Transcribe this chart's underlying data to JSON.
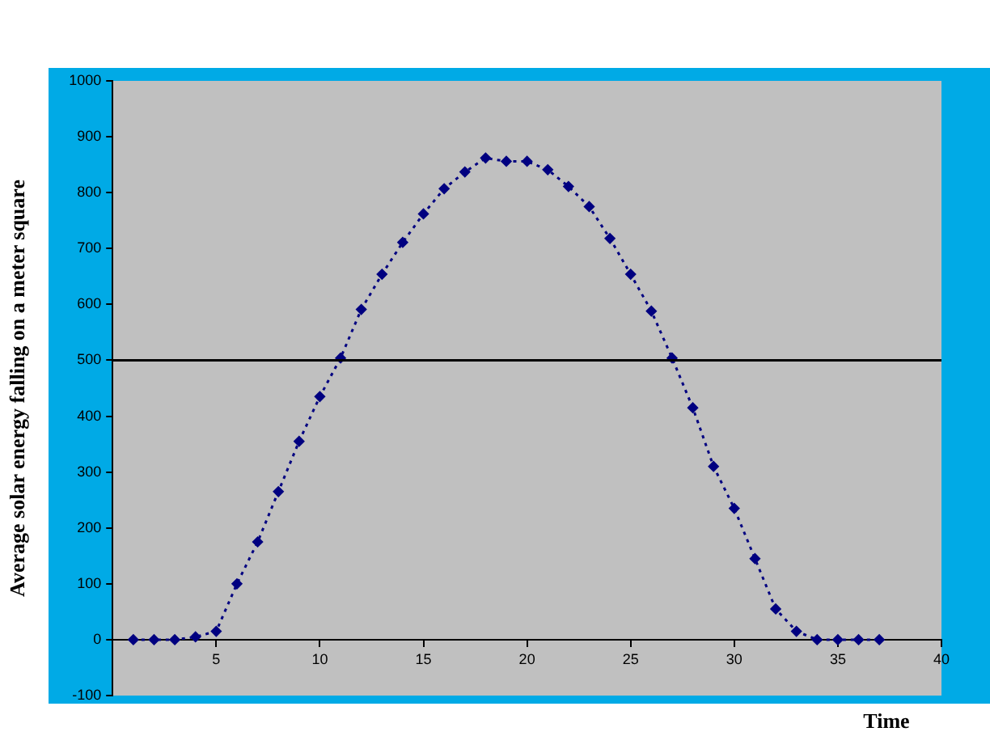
{
  "chart_data": {
    "type": "line",
    "xlabel": "Time",
    "ylabel": "Average solar energy falling on a meter square",
    "x": [
      1,
      2,
      3,
      4,
      5,
      6,
      7,
      8,
      9,
      10,
      11,
      12,
      13,
      14,
      15,
      16,
      17,
      18,
      19,
      20,
      21,
      22,
      23,
      24,
      25,
      26,
      27,
      28,
      29,
      30,
      31,
      32,
      33,
      34,
      35,
      36,
      37
    ],
    "series": [
      {
        "color": "#000080",
        "values": [
          0,
          0,
          0,
          5,
          15,
          100,
          175,
          265,
          355,
          435,
          504,
          591,
          654,
          711,
          762,
          807,
          837,
          862,
          856,
          856,
          841,
          811,
          775,
          718,
          654,
          588,
          504,
          415,
          310,
          235,
          145,
          55,
          15,
          0,
          0,
          0,
          0
        ]
      }
    ],
    "xlim": [
      0,
      40
    ],
    "xticks": [
      {
        "value": 0,
        "label": null
      },
      5,
      10,
      15,
      20,
      25,
      30,
      35,
      40
    ],
    "ylim": [
      -100,
      1000
    ],
    "yticks": [
      -100,
      0,
      100,
      200,
      300,
      400,
      500,
      600,
      700,
      800,
      900,
      1000
    ],
    "ref_lines": [
      {
        "axis": "y",
        "value": 500,
        "color": "#000000"
      }
    ],
    "grid": false,
    "legend": false,
    "marker": "diamond",
    "line_style": "dotted"
  }
}
